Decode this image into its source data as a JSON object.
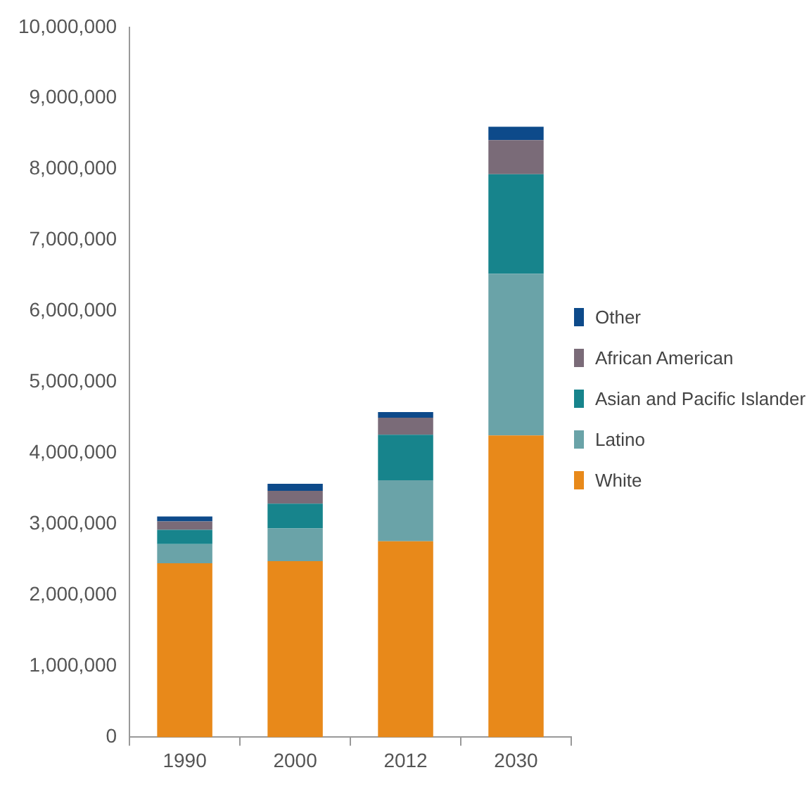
{
  "chart_data": {
    "type": "bar",
    "stacked": true,
    "categories": [
      "1990",
      "2000",
      "2012",
      "2030"
    ],
    "series": [
      {
        "name": "White",
        "color": "#e8891a",
        "values": [
          2450000,
          2480000,
          2760000,
          4250000
        ]
      },
      {
        "name": "Latino",
        "color": "#6aa3a8",
        "values": [
          270000,
          460000,
          860000,
          2280000
        ]
      },
      {
        "name": "Asian and Pacific Islander",
        "color": "#17848c",
        "values": [
          200000,
          350000,
          640000,
          1400000
        ]
      },
      {
        "name": "African American",
        "color": "#7a6b78",
        "values": [
          120000,
          180000,
          240000,
          480000
        ]
      },
      {
        "name": "Other",
        "color": "#0d4a8a",
        "values": [
          70000,
          100000,
          80000,
          190000
        ]
      }
    ],
    "ylim": [
      0,
      10000000
    ],
    "yticks": [
      {
        "value": 0,
        "label": "0"
      },
      {
        "value": 1000000,
        "label": "1,000,000"
      },
      {
        "value": 2000000,
        "label": "2,000,000"
      },
      {
        "value": 3000000,
        "label": "3,000,000"
      },
      {
        "value": 4000000,
        "label": "4,000,000"
      },
      {
        "value": 5000000,
        "label": "5,000,000"
      },
      {
        "value": 6000000,
        "label": "6,000,000"
      },
      {
        "value": 7000000,
        "label": "7,000,000"
      },
      {
        "value": 8000000,
        "label": "8,000,000"
      },
      {
        "value": 9000000,
        "label": "9,000,000"
      },
      {
        "value": 10000000,
        "label": "10,000,000"
      }
    ],
    "grid": false,
    "legend": "right"
  }
}
